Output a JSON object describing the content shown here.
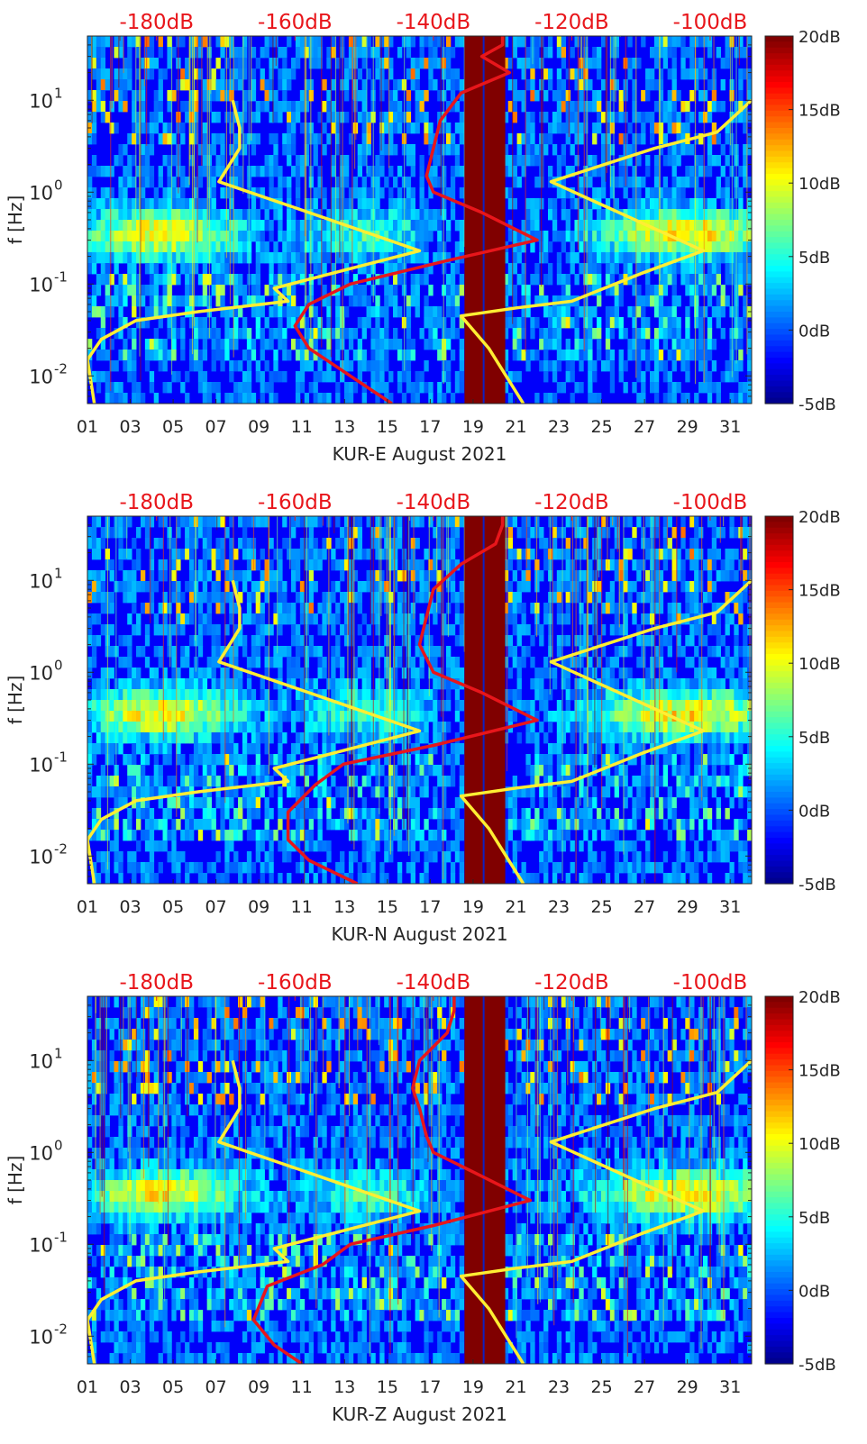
{
  "figure_title": "",
  "colors": {
    "spectrogram_palette": "jet",
    "top_axis_label_color": "#e8161b",
    "red_curve_color": "#e8161b",
    "yellow_curve_color": "#ffee33",
    "gap_color": "#800000"
  },
  "chart_data": [
    {
      "type": "heatmap",
      "station": "KUR-E",
      "xlabel": "KUR-E August 2021",
      "ylabel": "f [Hz]",
      "x_unit": "day of August 2021",
      "xlim": [
        1,
        32
      ],
      "ylim": [
        0.005,
        50
      ],
      "y_scale": "log",
      "x_ticks": [
        "01",
        "03",
        "05",
        "07",
        "09",
        "11",
        "13",
        "15",
        "17",
        "19",
        "21",
        "23",
        "25",
        "27",
        "29",
        "31"
      ],
      "y_ticks": [
        {
          "value": 0.01,
          "label": "10^-2"
        },
        {
          "value": 0.1,
          "label": "10^-1"
        },
        {
          "value": 1,
          "label": "10^0"
        },
        {
          "value": 10,
          "label": "10^1"
        }
      ],
      "top_axis": {
        "labels": [
          "-180dB",
          "-160dB",
          "-140dB",
          "-120dB",
          "-100dB"
        ],
        "values": [
          -180,
          -160,
          -140,
          -120,
          -100
        ],
        "range": [
          -190,
          -94
        ]
      },
      "colorbar": {
        "labels": [
          "-5dB",
          "0dB",
          "5dB",
          "10dB",
          "15dB",
          "20dB"
        ],
        "values": [
          -5,
          0,
          5,
          10,
          15,
          20
        ],
        "range": [
          -5,
          20
        ]
      },
      "data_gap_days": [
        [
          18.6,
          20.5
        ]
      ],
      "lines": [
        {
          "name": "red reference curve (top axis, dB)",
          "color": "#e8161b",
          "points": [
            [
              -130,
              50
            ],
            [
              -130,
              40
            ],
            [
              -133,
              30
            ],
            [
              -129,
              20
            ],
            [
              -136,
              12
            ],
            [
              -139,
              6
            ],
            [
              -140,
              3
            ],
            [
              -141,
              1.5
            ],
            [
              -140,
              1
            ],
            [
              -133,
              0.6
            ],
            [
              -125,
              0.3
            ],
            [
              -138,
              0.18
            ],
            [
              -152,
              0.1
            ],
            [
              -158,
              0.06
            ],
            [
              -160,
              0.035
            ],
            [
              -158,
              0.02
            ],
            [
              -152,
              0.01
            ],
            [
              -146,
              0.005
            ]
          ]
        },
        {
          "name": "yellow curve low (top axis, dB)",
          "color": "#ffee33",
          "points": [
            [
              -169,
              10
            ],
            [
              -168,
              5
            ],
            [
              -168,
              3
            ],
            [
              -171,
              1.3
            ],
            [
              -158,
              0.6
            ],
            [
              -142,
              0.23
            ],
            [
              -163,
              0.09
            ],
            [
              -161,
              0.065
            ],
            [
              -174,
              0.05
            ],
            [
              -183,
              0.04
            ],
            [
              -188,
              0.025
            ],
            [
              -190,
              0.015
            ],
            [
              -189,
              0.005
            ]
          ]
        },
        {
          "name": "yellow curve high (top axis, dB)",
          "color": "#ffee33",
          "points": [
            [
              -94,
              10
            ],
            [
              -99,
              4.5
            ],
            [
              -108,
              3
            ],
            [
              -123,
              1.3
            ],
            [
              -101,
              0.23
            ],
            [
              -110,
              0.13
            ],
            [
              -120,
              0.065
            ],
            [
              -128,
              0.055
            ],
            [
              -136,
              0.045
            ],
            [
              -132,
              0.02
            ],
            [
              -127,
              0.005
            ]
          ]
        }
      ]
    },
    {
      "type": "heatmap",
      "station": "KUR-N",
      "xlabel": "KUR-N August 2021",
      "ylabel": "f [Hz]",
      "x_unit": "day of August 2021",
      "xlim": [
        1,
        32
      ],
      "ylim": [
        0.005,
        50
      ],
      "y_scale": "log",
      "x_ticks": [
        "01",
        "03",
        "05",
        "07",
        "09",
        "11",
        "13",
        "15",
        "17",
        "19",
        "21",
        "23",
        "25",
        "27",
        "29",
        "31"
      ],
      "y_ticks": [
        {
          "value": 0.01,
          "label": "10^-2"
        },
        {
          "value": 0.1,
          "label": "10^-1"
        },
        {
          "value": 1,
          "label": "10^0"
        },
        {
          "value": 10,
          "label": "10^1"
        }
      ],
      "top_axis": {
        "labels": [
          "-180dB",
          "-160dB",
          "-140dB",
          "-120dB",
          "-100dB"
        ],
        "values": [
          -180,
          -160,
          -140,
          -120,
          -100
        ],
        "range": [
          -190,
          -94
        ]
      },
      "colorbar": {
        "labels": [
          "-5dB",
          "0dB",
          "5dB",
          "10dB",
          "15dB",
          "20dB"
        ],
        "values": [
          -5,
          0,
          5,
          10,
          15,
          20
        ],
        "range": [
          -5,
          20
        ]
      },
      "data_gap_days": [
        [
          18.6,
          20.5
        ]
      ],
      "lines": [
        {
          "name": "red reference curve (top axis, dB)",
          "color": "#e8161b",
          "points": [
            [
              -130,
              50
            ],
            [
              -130,
              40
            ],
            [
              -131,
              25
            ],
            [
              -136,
              15
            ],
            [
              -140,
              8
            ],
            [
              -141,
              4
            ],
            [
              -142,
              2
            ],
            [
              -140,
              1
            ],
            [
              -133,
              0.6
            ],
            [
              -125,
              0.3
            ],
            [
              -140,
              0.16
            ],
            [
              -153,
              0.1
            ],
            [
              -157,
              0.06
            ],
            [
              -161,
              0.03
            ],
            [
              -161,
              0.015
            ],
            [
              -158,
              0.009
            ],
            [
              -151,
              0.005
            ]
          ]
        },
        {
          "name": "yellow curve low (top axis, dB)",
          "color": "#ffee33",
          "points": [
            [
              -169,
              10
            ],
            [
              -168,
              5
            ],
            [
              -168,
              3
            ],
            [
              -171,
              1.3
            ],
            [
              -158,
              0.6
            ],
            [
              -142,
              0.23
            ],
            [
              -163,
              0.09
            ],
            [
              -161,
              0.065
            ],
            [
              -174,
              0.05
            ],
            [
              -183,
              0.04
            ],
            [
              -188,
              0.025
            ],
            [
              -190,
              0.015
            ],
            [
              -189,
              0.005
            ]
          ]
        },
        {
          "name": "yellow curve high (top axis, dB)",
          "color": "#ffee33",
          "points": [
            [
              -94,
              10
            ],
            [
              -99,
              4.5
            ],
            [
              -108,
              3
            ],
            [
              -123,
              1.3
            ],
            [
              -101,
              0.23
            ],
            [
              -110,
              0.13
            ],
            [
              -120,
              0.065
            ],
            [
              -128,
              0.055
            ],
            [
              -136,
              0.045
            ],
            [
              -132,
              0.02
            ],
            [
              -127,
              0.005
            ]
          ]
        }
      ]
    },
    {
      "type": "heatmap",
      "station": "KUR-Z",
      "xlabel": "KUR-Z August 2021",
      "ylabel": "f [Hz]",
      "x_unit": "day of August 2021",
      "xlim": [
        1,
        32
      ],
      "ylim": [
        0.005,
        50
      ],
      "y_scale": "log",
      "x_ticks": [
        "01",
        "03",
        "05",
        "07",
        "09",
        "11",
        "13",
        "15",
        "17",
        "19",
        "21",
        "23",
        "25",
        "27",
        "29",
        "31"
      ],
      "y_ticks": [
        {
          "value": 0.01,
          "label": "10^-2"
        },
        {
          "value": 0.1,
          "label": "10^-1"
        },
        {
          "value": 1,
          "label": "10^0"
        },
        {
          "value": 10,
          "label": "10^1"
        }
      ],
      "top_axis": {
        "labels": [
          "-180dB",
          "-160dB",
          "-140dB",
          "-120dB",
          "-100dB"
        ],
        "values": [
          -180,
          -160,
          -140,
          -120,
          -100
        ],
        "range": [
          -190,
          -94
        ]
      },
      "colorbar": {
        "labels": [
          "-5dB",
          "0dB",
          "5dB",
          "10dB",
          "15dB",
          "20dB"
        ],
        "values": [
          -5,
          0,
          5,
          10,
          15,
          20
        ],
        "range": [
          -5,
          20
        ]
      },
      "data_gap_days": [
        [
          18.6,
          20.5
        ]
      ],
      "lines": [
        {
          "name": "red reference curve (top axis, dB)",
          "color": "#e8161b",
          "points": [
            [
              -137,
              50
            ],
            [
              -137,
              35
            ],
            [
              -138,
              20
            ],
            [
              -142,
              10
            ],
            [
              -143,
              5
            ],
            [
              -142,
              3
            ],
            [
              -141,
              1.5
            ],
            [
              -140,
              1
            ],
            [
              -134,
              0.6
            ],
            [
              -126,
              0.3
            ],
            [
              -140,
              0.16
            ],
            [
              -152,
              0.1
            ],
            [
              -156,
              0.06
            ],
            [
              -164,
              0.035
            ],
            [
              -166,
              0.015
            ],
            [
              -163,
              0.008
            ],
            [
              -159,
              0.005
            ]
          ]
        },
        {
          "name": "yellow curve low (top axis, dB)",
          "color": "#ffee33",
          "points": [
            [
              -169,
              10
            ],
            [
              -168,
              5
            ],
            [
              -168,
              3
            ],
            [
              -171,
              1.3
            ],
            [
              -158,
              0.6
            ],
            [
              -142,
              0.23
            ],
            [
              -163,
              0.09
            ],
            [
              -161,
              0.065
            ],
            [
              -174,
              0.05
            ],
            [
              -183,
              0.04
            ],
            [
              -188,
              0.025
            ],
            [
              -190,
              0.015
            ],
            [
              -189,
              0.005
            ]
          ]
        },
        {
          "name": "yellow curve high (top axis, dB)",
          "color": "#ffee33",
          "points": [
            [
              -94,
              10
            ],
            [
              -99,
              4.5
            ],
            [
              -108,
              3
            ],
            [
              -123,
              1.3
            ],
            [
              -101,
              0.23
            ],
            [
              -110,
              0.13
            ],
            [
              -120,
              0.065
            ],
            [
              -128,
              0.055
            ],
            [
              -136,
              0.045
            ],
            [
              -132,
              0.02
            ],
            [
              -127,
              0.005
            ]
          ]
        }
      ]
    }
  ]
}
